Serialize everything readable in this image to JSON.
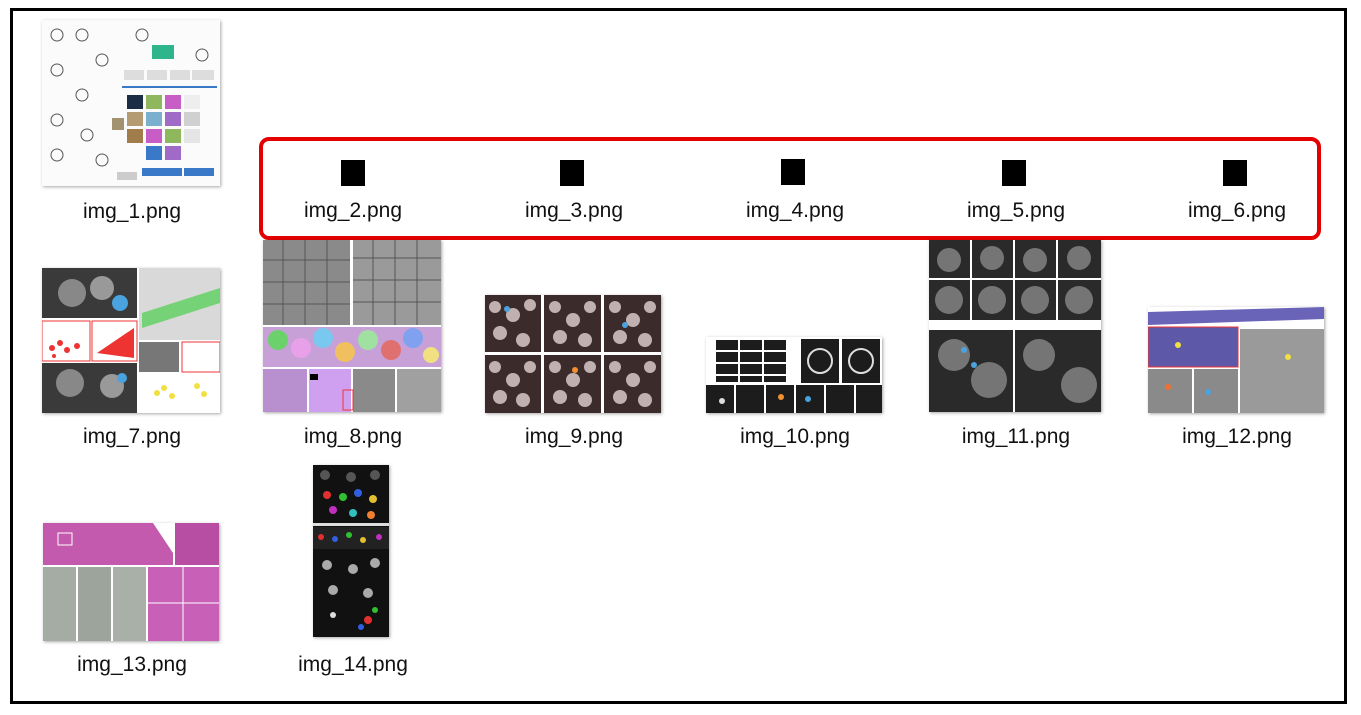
{
  "files": [
    {
      "id": "img_1",
      "label": "img_1.png"
    },
    {
      "id": "img_2",
      "label": "img_2.png"
    },
    {
      "id": "img_3",
      "label": "img_3.png"
    },
    {
      "id": "img_4",
      "label": "img_4.png"
    },
    {
      "id": "img_5",
      "label": "img_5.png"
    },
    {
      "id": "img_6",
      "label": "img_6.png"
    },
    {
      "id": "img_7",
      "label": "img_7.png"
    },
    {
      "id": "img_8",
      "label": "img_8.png"
    },
    {
      "id": "img_9",
      "label": "img_9.png"
    },
    {
      "id": "img_10",
      "label": "img_10.png"
    },
    {
      "id": "img_11",
      "label": "img_11.png"
    },
    {
      "id": "img_12",
      "label": "img_12.png"
    },
    {
      "id": "img_13",
      "label": "img_13.png"
    },
    {
      "id": "img_14",
      "label": "img_14.png"
    }
  ],
  "highlight_color": "#e30000"
}
